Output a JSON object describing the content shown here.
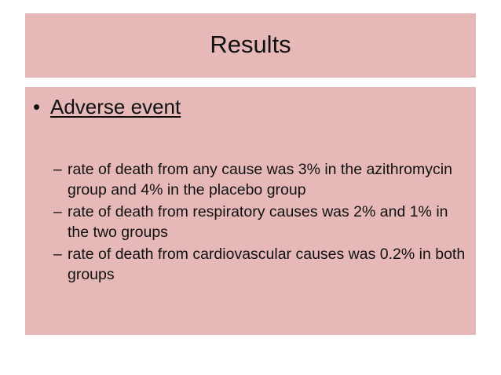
{
  "slide": {
    "title": "Results",
    "bullet": {
      "symbol": "•",
      "text": "Adverse event"
    },
    "sub_items": [
      {
        "dash": "–",
        "text": "rate of death from any cause was 3% in the azithromycin group and 4% in the placebo group"
      },
      {
        "dash": "–",
        "text": "rate of death from respiratory causes was 2% and 1% in the two groups"
      },
      {
        "dash": "–",
        "text": "rate of death from cardiovascular causes was 0.2% in both groups"
      }
    ],
    "colors": {
      "panel_background": "#e6b9b8",
      "text": "#111111"
    }
  }
}
